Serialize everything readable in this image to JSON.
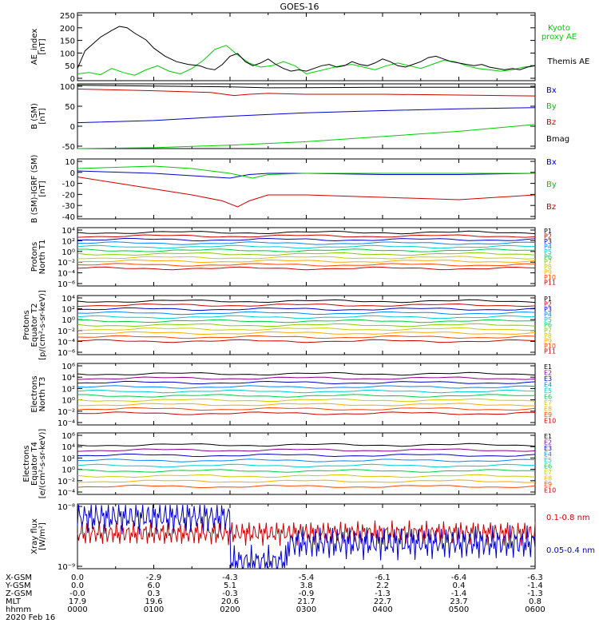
{
  "title": "GOES-16",
  "chart_data": [
    {
      "type": "line",
      "ylabel": "AE_index\n[nT]",
      "ylim": [
        0,
        250
      ],
      "yticks": [
        "250",
        "200",
        "150",
        "100",
        "50",
        "0"
      ],
      "series": [
        {
          "name": "Kyoto proxy AE",
          "color": "#00cc00",
          "values": [
            [
              0,
              25
            ],
            [
              0.3,
              30
            ],
            [
              0.6,
              22
            ],
            [
              0.9,
              45
            ],
            [
              1.2,
              30
            ],
            [
              1.5,
              20
            ],
            [
              1.8,
              40
            ],
            [
              2.1,
              55
            ],
            [
              2.4,
              35
            ],
            [
              2.7,
              25
            ],
            [
              3.0,
              45
            ],
            [
              3.3,
              75
            ],
            [
              3.6,
              115
            ],
            [
              3.9,
              130
            ],
            [
              4.2,
              95
            ],
            [
              4.5,
              65
            ],
            [
              4.8,
              50
            ],
            [
              5.1,
              55
            ],
            [
              5.4,
              70
            ],
            [
              5.7,
              55
            ],
            [
              6.0,
              25
            ],
            [
              6.3,
              35
            ],
            [
              6.6,
              45
            ],
            [
              6.9,
              55
            ],
            [
              7.2,
              60
            ],
            [
              7.5,
              50
            ],
            [
              7.8,
              40
            ],
            [
              8.1,
              55
            ],
            [
              8.4,
              65
            ],
            [
              8.7,
              55
            ],
            [
              9.0,
              45
            ],
            [
              9.3,
              60
            ],
            [
              9.6,
              75
            ],
            [
              9.9,
              70
            ],
            [
              10.2,
              55
            ],
            [
              10.5,
              45
            ],
            [
              10.8,
              40
            ],
            [
              11.1,
              35
            ],
            [
              11.4,
              40
            ],
            [
              11.7,
              50
            ],
            [
              12,
              55
            ]
          ]
        },
        {
          "name": "Themis AE",
          "color": "#000000",
          "values": [
            [
              0,
              45
            ],
            [
              0.2,
              110
            ],
            [
              0.4,
              135
            ],
            [
              0.6,
              160
            ],
            [
              0.9,
              185
            ],
            [
              1.1,
              200
            ],
            [
              1.3,
              195
            ],
            [
              1.5,
              175
            ],
            [
              1.8,
              150
            ],
            [
              2.0,
              120
            ],
            [
              2.3,
              90
            ],
            [
              2.6,
              70
            ],
            [
              2.9,
              60
            ],
            [
              3.2,
              55
            ],
            [
              3.4,
              45
            ],
            [
              3.6,
              40
            ],
            [
              3.8,
              60
            ],
            [
              4.0,
              90
            ],
            [
              4.2,
              100
            ],
            [
              4.4,
              70
            ],
            [
              4.6,
              55
            ],
            [
              4.8,
              65
            ],
            [
              5.0,
              80
            ],
            [
              5.2,
              60
            ],
            [
              5.4,
              45
            ],
            [
              5.6,
              35
            ],
            [
              5.8,
              40
            ],
            [
              6.0,
              35
            ],
            [
              6.2,
              45
            ],
            [
              6.4,
              55
            ],
            [
              6.6,
              60
            ],
            [
              6.8,
              50
            ],
            [
              7.0,
              55
            ],
            [
              7.2,
              70
            ],
            [
              7.4,
              60
            ],
            [
              7.6,
              55
            ],
            [
              7.8,
              65
            ],
            [
              8.0,
              80
            ],
            [
              8.2,
              70
            ],
            [
              8.4,
              55
            ],
            [
              8.6,
              50
            ],
            [
              8.8,
              60
            ],
            [
              9.0,
              70
            ],
            [
              9.2,
              85
            ],
            [
              9.4,
              90
            ],
            [
              9.6,
              80
            ],
            [
              9.8,
              70
            ],
            [
              10.0,
              65
            ],
            [
              10.2,
              60
            ],
            [
              10.4,
              55
            ],
            [
              10.6,
              60
            ],
            [
              10.8,
              50
            ],
            [
              11.0,
              45
            ],
            [
              11.2,
              40
            ],
            [
              11.4,
              45
            ],
            [
              11.6,
              40
            ],
            [
              11.8,
              50
            ],
            [
              12,
              55
            ]
          ]
        }
      ]
    },
    {
      "type": "line",
      "ylabel": "B (SM)\n[nT]",
      "ylim": [
        -50,
        100
      ],
      "yticks": [
        "100",
        "50",
        "0",
        "-50"
      ],
      "series": [
        {
          "name": "Bx",
          "color": "#0000cc",
          "values": [
            [
              0,
              10
            ],
            [
              2,
              15
            ],
            [
              4,
              25
            ],
            [
              6,
              33
            ],
            [
              8,
              38
            ],
            [
              10,
              42
            ],
            [
              12,
              45
            ]
          ]
        },
        {
          "name": "By",
          "color": "#00cc00",
          "values": [
            [
              0,
              -50
            ],
            [
              2,
              -48
            ],
            [
              4,
              -42
            ],
            [
              6,
              -34
            ],
            [
              8,
              -22
            ],
            [
              10,
              -10
            ],
            [
              12,
              6
            ]
          ]
        },
        {
          "name": "Bz",
          "color": "#cc0000",
          "values": [
            [
              0,
              88
            ],
            [
              2,
              84
            ],
            [
              3.5,
              80
            ],
            [
              4.1,
              73
            ],
            [
              4.5,
              76
            ],
            [
              5,
              78
            ],
            [
              6,
              76
            ],
            [
              8,
              76
            ],
            [
              10,
              74
            ],
            [
              12,
              72
            ]
          ]
        },
        {
          "name": "Bmag",
          "color": "#000000",
          "values": [
            [
              0,
              97
            ],
            [
              2,
              95
            ],
            [
              4,
              93
            ],
            [
              5,
              91
            ],
            [
              8,
              92
            ],
            [
              10,
              92
            ],
            [
              12,
              92
            ]
          ]
        }
      ]
    },
    {
      "type": "line",
      "ylabel": "B (SM)-IGRF (SM)\n[nT]",
      "ylim": [
        -40,
        10
      ],
      "yticks": [
        "10",
        "0",
        "-10",
        "-20",
        "-30",
        "-40"
      ],
      "series": [
        {
          "name": "Bx",
          "color": "#0000cc",
          "values": [
            [
              0,
              0
            ],
            [
              1,
              -1
            ],
            [
              2,
              -2
            ],
            [
              3,
              -4
            ],
            [
              4,
              -6
            ],
            [
              4.5,
              -3
            ],
            [
              5,
              -2
            ],
            [
              6,
              -2
            ],
            [
              8,
              -3
            ],
            [
              10,
              -3
            ],
            [
              12,
              -2
            ]
          ]
        },
        {
          "name": "By",
          "color": "#00cc00",
          "values": [
            [
              0,
              2
            ],
            [
              1,
              3
            ],
            [
              2,
              4
            ],
            [
              3,
              2
            ],
            [
              4,
              -2
            ],
            [
              4.6,
              -6
            ],
            [
              5,
              -3
            ],
            [
              6,
              -2
            ],
            [
              8,
              -2
            ],
            [
              10,
              -2
            ],
            [
              12,
              -2
            ]
          ]
        },
        {
          "name": "Bz",
          "color": "#cc0000",
          "values": [
            [
              0,
              -5
            ],
            [
              1,
              -10
            ],
            [
              2,
              -15
            ],
            [
              3,
              -20
            ],
            [
              3.8,
              -25
            ],
            [
              4.2,
              -30
            ],
            [
              4.5,
              -25
            ],
            [
              5,
              -20
            ],
            [
              6,
              -20
            ],
            [
              8,
              -22
            ],
            [
              10,
              -24
            ],
            [
              12,
              -20
            ]
          ]
        }
      ]
    },
    {
      "type": "line",
      "ylabel": "Protons\nNorth T1",
      "yscale": "log",
      "yticks": [
        "10^4",
        "10^2",
        "10^0",
        "10^-2",
        "10^-4",
        "10^-6"
      ],
      "series_labels": [
        "P1",
        "P2",
        "P3",
        "P4",
        "P5",
        "P6",
        "P7",
        "P8",
        "P9",
        "P10",
        "P11"
      ]
    },
    {
      "type": "line",
      "ylabel": "Protons\nEquator T2\n[p/(cm²-s-sr-keV)]",
      "yscale": "log",
      "yticks": [
        "10^4",
        "10^2",
        "10^0",
        "10^-2",
        "10^-4",
        "10^-6"
      ],
      "series_labels": [
        "P1",
        "P2",
        "P3",
        "P4",
        "P5",
        "P6",
        "P7",
        "P8",
        "P9",
        "P10",
        "P11"
      ]
    },
    {
      "type": "line",
      "ylabel": "Electrons\nNorth T3",
      "yscale": "log",
      "yticks": [
        "10^6",
        "10^4",
        "10^2",
        "10^0",
        "10^-2",
        "10^-4"
      ],
      "series_labels": [
        "E1",
        "E2",
        "E3",
        "E4",
        "E5",
        "E6",
        "E7",
        "E8",
        "E9",
        "E10"
      ]
    },
    {
      "type": "line",
      "ylabel": "Electrons\nEquator T4\n[e/(cm²-s-sr-keV)]",
      "yscale": "log",
      "yticks": [
        "10^6",
        "10^4",
        "10^2",
        "10^0",
        "10^-2",
        "10^-4"
      ],
      "series_labels": [
        "E1",
        "E2",
        "E3",
        "E4",
        "E5",
        "E6",
        "E7",
        "E8",
        "E9",
        "E10"
      ]
    },
    {
      "type": "line",
      "ylabel": "Xray flux\n[W/m²]",
      "yscale": "log",
      "yticks": [
        "10^-8",
        "10^-9"
      ],
      "series": [
        {
          "name": "0.1-0.8 nm",
          "color": "#cc0000"
        },
        {
          "name": "0.05-0.4 nm",
          "color": "#0000cc"
        }
      ]
    }
  ],
  "footer": {
    "rows": [
      {
        "label": "X-GSM",
        "values": [
          "0.0",
          "-2.9",
          "-4.3",
          "-5.4",
          "-6.1",
          "-6.4",
          "-6.3"
        ]
      },
      {
        "label": "Y-GSM",
        "values": [
          "0.0",
          "6.0",
          "5.1",
          "3.8",
          "2.2",
          "0.4",
          "-1.4"
        ]
      },
      {
        "label": "Z-GSM",
        "values": [
          "-0.0",
          "0.3",
          "-0.3",
          "-0.9",
          "-1.3",
          "-1.4",
          "-1.3"
        ]
      },
      {
        "label": "MLT",
        "values": [
          "17.9",
          "19.6",
          "20.6",
          "21.7",
          "22.7",
          "23.7",
          "0.8"
        ]
      },
      {
        "label": "hhmm",
        "values": [
          "0000",
          "0100",
          "0200",
          "0300",
          "0400",
          "0500",
          "0600"
        ]
      }
    ],
    "date": "2020 Feb 16"
  },
  "colors": {
    "proton_channels": [
      "#000000",
      "#cc0000",
      "#0000cc",
      "#0088ff",
      "#00cccc",
      "#00cc44",
      "#88cc00",
      "#cccc00",
      "#ffaa00",
      "#ff4400",
      "#cc0000"
    ],
    "electron_channels": [
      "#000000",
      "#880088",
      "#0000cc",
      "#0088ff",
      "#00cccc",
      "#00cc44",
      "#cccc00",
      "#ffaa00",
      "#ff4400",
      "#cc0000"
    ]
  }
}
